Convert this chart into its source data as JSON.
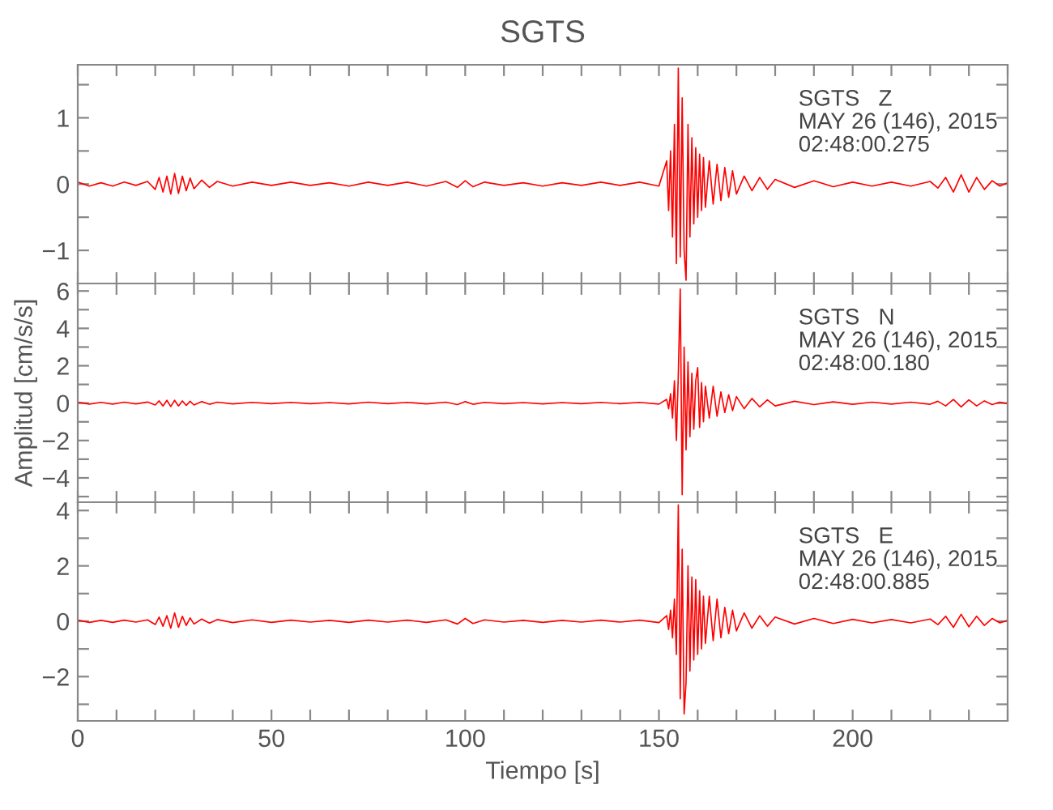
{
  "chart_data": [
    {
      "type": "line",
      "title": "SGTS",
      "tick_labels": "y",
      "annotations": [
        "SGTS   Z",
        "MAY 26 (146), 2015",
        "02:48:00.275"
      ],
      "xlim": [
        0,
        240
      ],
      "ylim": [
        -1.5,
        1.8
      ],
      "xticks": [
        0,
        {
          "value": 10,
          "label": null
        },
        {
          "value": 20,
          "label": null
        },
        {
          "value": 30,
          "label": null
        },
        {
          "value": 40,
          "label": null
        },
        50,
        {
          "value": 60,
          "label": null
        },
        {
          "value": 70,
          "label": null
        },
        {
          "value": 80,
          "label": null
        },
        {
          "value": 90,
          "label": null
        },
        100,
        {
          "value": 110,
          "label": null
        },
        {
          "value": 120,
          "label": null
        },
        {
          "value": 130,
          "label": null
        },
        {
          "value": 140,
          "label": null
        },
        150,
        {
          "value": 160,
          "label": null
        },
        {
          "value": 170,
          "label": null
        },
        {
          "value": 180,
          "label": null
        },
        {
          "value": 190,
          "label": null
        },
        200,
        {
          "value": 210,
          "label": null
        },
        {
          "value": 220,
          "label": null
        },
        {
          "value": 230,
          "label": null
        },
        {
          "value": 240,
          "label": null
        }
      ],
      "yticks": [
        -1,
        {
          "value": -0.5,
          "label": null
        },
        0,
        {
          "value": 0.5,
          "label": null
        },
        1,
        {
          "value": 1.5,
          "label": null
        }
      ],
      "x": [
        0,
        3,
        6,
        9,
        12,
        15,
        18,
        20,
        21,
        22,
        23,
        24,
        25,
        26,
        27,
        28,
        29,
        30,
        32,
        34,
        36,
        40,
        45,
        50,
        55,
        60,
        65,
        70,
        75,
        80,
        85,
        90,
        95,
        98,
        100,
        102,
        105,
        110,
        115,
        120,
        125,
        130,
        135,
        140,
        145,
        150,
        152,
        152.5,
        153,
        153.5,
        154,
        154.5,
        155,
        155.5,
        156,
        156.5,
        157,
        157.5,
        158,
        158.5,
        159,
        159.5,
        160,
        160.5,
        161,
        161.5,
        162,
        163,
        164,
        165,
        166,
        167,
        168,
        169,
        170,
        172,
        174,
        176,
        178,
        180,
        185,
        190,
        195,
        200,
        205,
        210,
        215,
        220,
        222,
        224,
        226,
        228,
        230,
        232,
        234,
        236,
        238,
        240
      ],
      "series": [
        {
          "color": "#ff0000",
          "values": [
            0.03,
            -0.03,
            0.02,
            -0.03,
            0.03,
            -0.02,
            0.04,
            -0.08,
            0.1,
            -0.12,
            0.12,
            -0.15,
            0.16,
            -0.14,
            0.12,
            -0.1,
            0.09,
            -0.07,
            0.06,
            -0.05,
            0.04,
            -0.03,
            0.03,
            -0.02,
            0.03,
            -0.02,
            0.02,
            -0.03,
            0.03,
            -0.02,
            0.03,
            -0.03,
            0.04,
            -0.05,
            0.05,
            -0.04,
            0.03,
            -0.02,
            0.02,
            -0.03,
            0.02,
            -0.02,
            0.03,
            -0.02,
            0.03,
            -0.03,
            0.35,
            -0.4,
            0.5,
            -0.8,
            0.9,
            -1.2,
            1.75,
            -1.1,
            1.3,
            -1.0,
            -1.45,
            0.9,
            -0.8,
            0.7,
            -0.6,
            0.55,
            -0.5,
            0.45,
            -0.4,
            0.4,
            -0.35,
            0.35,
            -0.3,
            0.3,
            -0.25,
            0.25,
            -0.2,
            0.2,
            -0.15,
            0.12,
            -0.1,
            0.1,
            -0.08,
            0.07,
            -0.05,
            0.05,
            -0.04,
            0.03,
            -0.03,
            0.03,
            -0.03,
            0.04,
            -0.06,
            0.1,
            -0.12,
            0.14,
            -0.12,
            0.1,
            -0.08,
            0.05,
            -0.03,
            0.02
          ]
        }
      ]
    },
    {
      "type": "line",
      "ylabel": "Amplitud [cm/s/s]",
      "tick_labels": "y",
      "annotations": [
        "SGTS   N",
        "MAY 26 (146), 2015",
        "02:48:00.180"
      ],
      "xlim": [
        0,
        240
      ],
      "ylim": [
        -5.3,
        6.4
      ],
      "xticks": [
        0,
        {
          "value": 10,
          "label": null
        },
        {
          "value": 20,
          "label": null
        },
        {
          "value": 30,
          "label": null
        },
        {
          "value": 40,
          "label": null
        },
        50,
        {
          "value": 60,
          "label": null
        },
        {
          "value": 70,
          "label": null
        },
        {
          "value": 80,
          "label": null
        },
        {
          "value": 90,
          "label": null
        },
        100,
        {
          "value": 110,
          "label": null
        },
        {
          "value": 120,
          "label": null
        },
        {
          "value": 130,
          "label": null
        },
        {
          "value": 140,
          "label": null
        },
        150,
        {
          "value": 160,
          "label": null
        },
        {
          "value": 170,
          "label": null
        },
        {
          "value": 180,
          "label": null
        },
        {
          "value": 190,
          "label": null
        },
        200,
        {
          "value": 210,
          "label": null
        },
        {
          "value": 220,
          "label": null
        },
        {
          "value": 230,
          "label": null
        },
        {
          "value": 240,
          "label": null
        }
      ],
      "yticks": [
        {
          "value": -5,
          "label": null
        },
        -4,
        {
          "value": -3,
          "label": null
        },
        -2,
        {
          "value": -1,
          "label": null
        },
        0,
        {
          "value": 1,
          "label": null
        },
        2,
        {
          "value": 3,
          "label": null
        },
        4,
        {
          "value": 5,
          "label": null
        },
        6
      ],
      "x": [
        0,
        3,
        6,
        9,
        12,
        15,
        18,
        20,
        21,
        22,
        23,
        24,
        25,
        26,
        27,
        28,
        29,
        30,
        32,
        34,
        36,
        40,
        45,
        50,
        55,
        60,
        65,
        70,
        75,
        80,
        85,
        90,
        95,
        98,
        100,
        102,
        105,
        110,
        115,
        120,
        125,
        130,
        135,
        140,
        145,
        150,
        152,
        152.5,
        153,
        153.5,
        154,
        154.5,
        155,
        155.5,
        156,
        156.5,
        157,
        157.5,
        158,
        158.5,
        159,
        159.5,
        160,
        160.5,
        161,
        161.5,
        162,
        163,
        164,
        165,
        166,
        167,
        168,
        169,
        170,
        172,
        174,
        176,
        178,
        180,
        185,
        190,
        195,
        200,
        205,
        210,
        215,
        220,
        222,
        224,
        226,
        228,
        230,
        232,
        234,
        236,
        238,
        240
      ],
      "series": [
        {
          "color": "#ff0000",
          "values": [
            0.05,
            -0.05,
            0.04,
            -0.05,
            0.05,
            -0.04,
            0.06,
            -0.1,
            0.12,
            -0.15,
            0.15,
            -0.18,
            0.15,
            -0.15,
            0.12,
            -0.12,
            0.1,
            -0.1,
            0.08,
            -0.06,
            0.05,
            -0.04,
            0.04,
            -0.03,
            0.04,
            -0.03,
            0.03,
            -0.04,
            0.05,
            -0.03,
            0.04,
            -0.04,
            0.05,
            -0.08,
            0.08,
            -0.06,
            0.04,
            -0.03,
            0.03,
            -0.04,
            0.03,
            -0.03,
            0.04,
            -0.03,
            0.04,
            -0.05,
            0.2,
            -0.3,
            0.5,
            -0.8,
            1.2,
            -2.0,
            1.5,
            6.1,
            -4.9,
            3.0,
            -2.5,
            2.2,
            -1.8,
            1.6,
            -1.4,
            1.2,
            1.9,
            -1.3,
            1.1,
            -1.0,
            0.9,
            -0.8,
            0.9,
            -0.7,
            0.6,
            -0.5,
            0.45,
            -0.4,
            0.35,
            -0.3,
            0.25,
            -0.2,
            0.18,
            -0.15,
            0.1,
            -0.08,
            0.07,
            -0.06,
            0.05,
            -0.05,
            0.05,
            -0.06,
            0.1,
            -0.15,
            0.2,
            -0.2,
            0.18,
            -0.15,
            0.12,
            -0.08,
            0.05,
            -0.03
          ]
        }
      ]
    },
    {
      "type": "line",
      "xlabel": "Tiempo [s]",
      "annotations": [
        "SGTS   E",
        "MAY 26 (146), 2015",
        "02:48:00.885"
      ],
      "xlim": [
        0,
        240
      ],
      "ylim": [
        -3.6,
        4.3
      ],
      "xticks": [
        0,
        {
          "value": 10,
          "label": null
        },
        {
          "value": 20,
          "label": null
        },
        {
          "value": 30,
          "label": null
        },
        {
          "value": 40,
          "label": null
        },
        50,
        {
          "value": 60,
          "label": null
        },
        {
          "value": 70,
          "label": null
        },
        {
          "value": 80,
          "label": null
        },
        {
          "value": 90,
          "label": null
        },
        100,
        {
          "value": 110,
          "label": null
        },
        {
          "value": 120,
          "label": null
        },
        {
          "value": 130,
          "label": null
        },
        {
          "value": 140,
          "label": null
        },
        150,
        {
          "value": 160,
          "label": null
        },
        {
          "value": 170,
          "label": null
        },
        {
          "value": 180,
          "label": null
        },
        {
          "value": 190,
          "label": null
        },
        200,
        {
          "value": 210,
          "label": null
        },
        {
          "value": 220,
          "label": null
        },
        {
          "value": 230,
          "label": null
        },
        {
          "value": 240,
          "label": null
        }
      ],
      "yticks": [
        {
          "value": -3,
          "label": null
        },
        -2,
        {
          "value": -1,
          "label": null
        },
        0,
        {
          "value": 1,
          "label": null
        },
        2,
        {
          "value": 3,
          "label": null
        },
        4
      ],
      "x": [
        0,
        3,
        6,
        9,
        12,
        15,
        18,
        20,
        21,
        22,
        23,
        24,
        25,
        26,
        27,
        28,
        29,
        30,
        32,
        34,
        36,
        40,
        45,
        50,
        55,
        60,
        65,
        70,
        75,
        80,
        85,
        90,
        95,
        98,
        100,
        102,
        105,
        110,
        115,
        120,
        125,
        130,
        135,
        140,
        145,
        150,
        152,
        152.5,
        153,
        153.5,
        154,
        154.5,
        155,
        155.5,
        156,
        156.5,
        157,
        157.5,
        158,
        158.5,
        159,
        159.5,
        160,
        160.5,
        161,
        161.5,
        162,
        163,
        164,
        165,
        166,
        167,
        168,
        169,
        170,
        172,
        174,
        176,
        178,
        180,
        185,
        190,
        195,
        200,
        205,
        210,
        215,
        220,
        222,
        224,
        226,
        228,
        230,
        232,
        234,
        236,
        238,
        240
      ],
      "series": [
        {
          "color": "#ff0000",
          "values": [
            0.04,
            -0.04,
            0.03,
            -0.04,
            0.04,
            -0.03,
            0.05,
            -0.12,
            0.15,
            -0.18,
            0.2,
            -0.25,
            0.3,
            -0.22,
            0.18,
            -0.15,
            0.12,
            -0.1,
            0.08,
            -0.07,
            0.06,
            -0.05,
            0.05,
            -0.04,
            0.04,
            -0.03,
            0.03,
            -0.04,
            0.04,
            -0.03,
            0.04,
            -0.04,
            0.05,
            -0.1,
            0.1,
            -0.08,
            0.05,
            -0.03,
            0.03,
            -0.04,
            0.03,
            -0.03,
            0.04,
            -0.03,
            0.04,
            -0.05,
            0.2,
            -0.3,
            0.4,
            -0.6,
            0.8,
            -1.2,
            4.2,
            -2.8,
            2.6,
            -3.35,
            -2.2,
            2.0,
            -1.8,
            1.6,
            -1.4,
            1.5,
            -1.2,
            1.1,
            -1.0,
            0.9,
            -0.8,
            0.9,
            -0.7,
            0.8,
            -0.6,
            0.5,
            -0.45,
            0.4,
            -0.35,
            0.3,
            -0.25,
            0.2,
            -0.18,
            0.15,
            -0.1,
            0.1,
            -0.08,
            0.07,
            -0.06,
            0.06,
            -0.06,
            0.08,
            -0.12,
            0.18,
            -0.22,
            0.25,
            -0.2,
            0.18,
            -0.15,
            0.1,
            -0.06,
            0.03
          ]
        }
      ]
    }
  ]
}
